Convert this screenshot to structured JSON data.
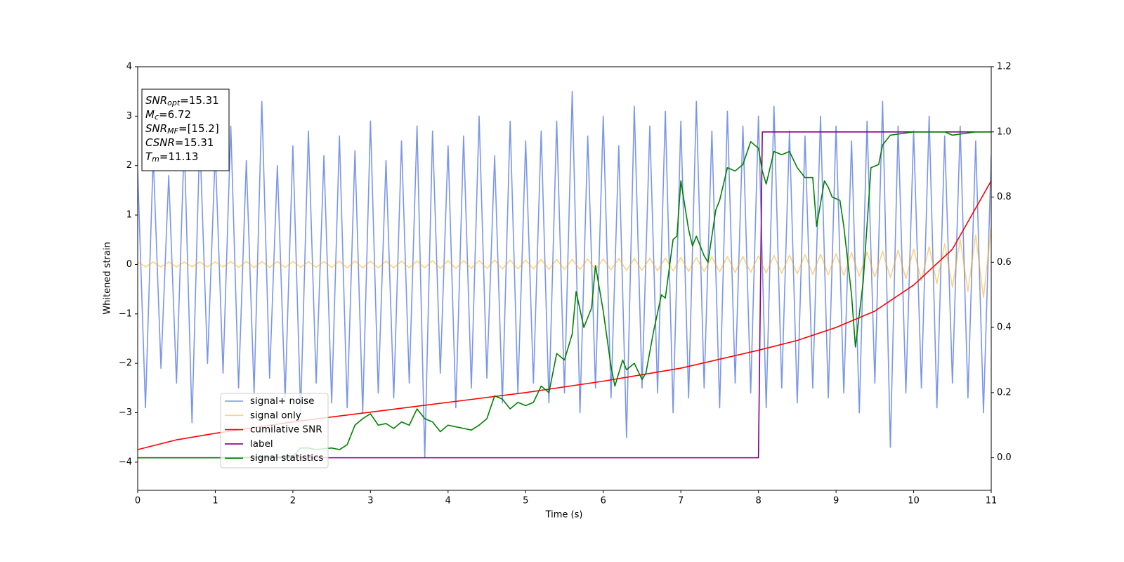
{
  "chart_data": {
    "type": "line",
    "x_label": "Time (s)",
    "y_label": "Whitened strain",
    "xlim": [
      0,
      11
    ],
    "ylim": [
      -4.57,
      4.0
    ],
    "y2lim": [
      -0.1,
      1.2
    ],
    "xticks": [
      0,
      1,
      2,
      3,
      4,
      5,
      6,
      7,
      8,
      9,
      10,
      11
    ],
    "yticks": [
      {
        "value": -4,
        "label": "−4"
      },
      {
        "value": -3,
        "label": "−3"
      },
      {
        "value": -2,
        "label": "−2"
      },
      {
        "value": -1,
        "label": "−1"
      },
      0,
      1,
      2,
      3,
      4
    ],
    "y2ticks": [
      {
        "value": 0,
        "label": "0.0"
      },
      {
        "value": 0.2,
        "label": "0.2"
      },
      {
        "value": 0.4,
        "label": "0.4"
      },
      {
        "value": 0.6,
        "label": "0.6"
      },
      {
        "value": 0.8,
        "label": "0.8"
      },
      {
        "value": 1.0,
        "label": "1.0"
      },
      {
        "value": 1.2,
        "label": "1.2"
      }
    ],
    "legend": "lower left",
    "annotation": [
      [
        "SNR",
        "opt",
        "=15.31"
      ],
      [
        "M",
        "c",
        "=6.72"
      ],
      [
        "SNR",
        "MF",
        "=[15.2]"
      ],
      [
        "CSNR",
        "=15.31"
      ],
      [
        "T",
        "m",
        "=11.13"
      ]
    ],
    "x": [
      0,
      0.1,
      0.2,
      0.3,
      0.4,
      0.5,
      0.6,
      0.7,
      0.8,
      0.9,
      1,
      1.1,
      1.2,
      1.3,
      1.4,
      1.5,
      1.6,
      1.7,
      1.8,
      1.9,
      2,
      2.1,
      2.2,
      2.3,
      2.4,
      2.5,
      2.6,
      2.7,
      2.8,
      2.9,
      3,
      3.1,
      3.2,
      3.3,
      3.4,
      3.5,
      3.6,
      3.7,
      3.8,
      3.9,
      4,
      4.1,
      4.2,
      4.3,
      4.4,
      4.5,
      4.6,
      4.7,
      4.8,
      4.9,
      5,
      5.1,
      5.2,
      5.3,
      5.4,
      5.5,
      5.6,
      5.7,
      5.8,
      5.9,
      6,
      6.1,
      6.2,
      6.3,
      6.4,
      6.5,
      6.6,
      6.7,
      6.8,
      6.9,
      7,
      7.1,
      7.2,
      7.3,
      7.4,
      7.5,
      7.6,
      7.7,
      7.8,
      7.9,
      8,
      8.1,
      8.2,
      8.3,
      8.4,
      8.5,
      8.6,
      8.7,
      8.8,
      8.9,
      9,
      9.1,
      9.2,
      9.3,
      9.4,
      9.5,
      9.6,
      9.7,
      9.8,
      9.9,
      10,
      10.1,
      10.2,
      10.3,
      10.4,
      10.5,
      10.6,
      10.7,
      10.8,
      10.9,
      11
    ],
    "series": [
      {
        "name": "signal+ noise",
        "color": "#4169e1",
        "alpha": 0.7,
        "values": [
          1.9,
          -2.9,
          2.2,
          -2.1,
          1.8,
          -2.4,
          2.5,
          -3.2,
          2.6,
          -2.0,
          2.3,
          -2.2,
          2.8,
          -2.5,
          2.1,
          -2.6,
          3.3,
          -2.3,
          2.0,
          -2.7,
          2.4,
          -3.0,
          2.7,
          -2.4,
          2.2,
          -2.8,
          2.6,
          -2.9,
          2.3,
          -3.0,
          2.9,
          -2.6,
          2.1,
          -2.7,
          2.5,
          -2.4,
          2.8,
          -3.9,
          2.7,
          -2.2,
          2.4,
          -2.9,
          2.6,
          -2.5,
          3.0,
          -2.3,
          2.2,
          -2.8,
          2.9,
          -2.6,
          2.5,
          -2.4,
          2.7,
          -2.8,
          2.9,
          -2.6,
          3.5,
          -3.0,
          2.6,
          -2.5,
          3.0,
          -2.7,
          2.4,
          -3.5,
          3.2,
          -2.5,
          2.8,
          -2.6,
          3.1,
          -3.0,
          2.9,
          -2.7,
          3.3,
          -2.5,
          2.7,
          -2.9,
          3.1,
          -2.4,
          2.8,
          -2.6,
          3.0,
          -2.9,
          3.2,
          -2.5,
          2.7,
          -2.8,
          2.6,
          -2.5,
          3.0,
          -2.7,
          2.8,
          -2.6,
          2.5,
          -3.0,
          2.9,
          -2.4,
          3.3,
          -3.7,
          2.8,
          -2.6,
          2.7,
          -2.5,
          3.0,
          -2.9,
          2.6,
          -2.4,
          2.8,
          -2.7,
          2.5,
          -3.0,
          2.2
        ]
      },
      {
        "name": "signal only",
        "color": "#ffa500",
        "alpha": 0.5,
        "values": [
          0.05,
          -0.05,
          0.05,
          -0.05,
          0.05,
          -0.05,
          0.05,
          -0.05,
          0.05,
          -0.05,
          0.05,
          -0.05,
          0.06,
          -0.06,
          0.06,
          -0.06,
          0.06,
          -0.06,
          0.06,
          -0.06,
          0.06,
          -0.06,
          0.06,
          -0.06,
          0.06,
          -0.06,
          0.07,
          -0.07,
          0.07,
          -0.07,
          0.07,
          -0.07,
          0.07,
          -0.07,
          0.07,
          -0.07,
          0.07,
          -0.07,
          0.08,
          -0.08,
          0.08,
          -0.08,
          0.08,
          -0.08,
          0.08,
          -0.08,
          0.09,
          -0.09,
          0.09,
          -0.09,
          0.09,
          -0.09,
          0.1,
          -0.1,
          0.1,
          -0.1,
          0.1,
          -0.1,
          0.11,
          -0.11,
          0.11,
          -0.11,
          0.12,
          -0.12,
          0.12,
          -0.12,
          0.13,
          -0.13,
          0.13,
          -0.13,
          0.14,
          -0.14,
          0.14,
          -0.14,
          0.15,
          -0.15,
          0.16,
          -0.16,
          0.16,
          -0.16,
          0.17,
          -0.17,
          0.18,
          -0.18,
          0.19,
          -0.19,
          0.2,
          -0.2,
          0.21,
          -0.21,
          0.22,
          -0.22,
          0.24,
          -0.24,
          0.25,
          -0.25,
          0.27,
          -0.27,
          0.29,
          -0.29,
          0.31,
          -0.33,
          0.36,
          -0.39,
          0.42,
          -0.46,
          0.5,
          -0.55,
          0.6,
          -0.67,
          0.75
        ]
      },
      {
        "name": "cumilative SNR",
        "color": "red",
        "alpha": 1,
        "axis": "y2",
        "x": [
          0,
          0.5,
          1,
          2,
          3,
          4,
          5,
          6,
          7,
          8,
          8.5,
          9,
          9.5,
          10,
          10.5,
          11
        ],
        "values": [
          0.025,
          0.055,
          0.075,
          0.11,
          0.14,
          0.17,
          0.2,
          0.235,
          0.275,
          0.33,
          0.36,
          0.4,
          0.45,
          0.53,
          0.64,
          0.85
        ]
      },
      {
        "name": "label",
        "color": "purple",
        "alpha": 1,
        "axis": "y2",
        "x": [
          0,
          8.0,
          8.05,
          11
        ],
        "values": [
          0,
          0,
          1,
          1
        ]
      },
      {
        "name": "signal statistics",
        "color": "green",
        "alpha": 1,
        "axis": "y2",
        "x": [
          0,
          1,
          2,
          2.1,
          2.2,
          2.3,
          2.5,
          2.6,
          2.7,
          2.8,
          2.9,
          3.0,
          3.1,
          3.2,
          3.3,
          3.4,
          3.5,
          3.6,
          3.7,
          3.8,
          3.9,
          4.0,
          4.1,
          4.2,
          4.3,
          4.4,
          4.5,
          4.6,
          4.7,
          4.8,
          4.9,
          5.0,
          5.1,
          5.2,
          5.3,
          5.4,
          5.5,
          5.6,
          5.65,
          5.75,
          5.85,
          5.9,
          6.0,
          6.1,
          6.15,
          6.25,
          6.3,
          6.4,
          6.5,
          6.55,
          6.65,
          6.75,
          6.8,
          6.9,
          6.95,
          7.0,
          7.1,
          7.15,
          7.2,
          7.3,
          7.35,
          7.45,
          7.5,
          7.6,
          7.7,
          7.8,
          7.9,
          8.0,
          8.05,
          8.1,
          8.2,
          8.3,
          8.4,
          8.5,
          8.6,
          8.7,
          8.75,
          8.85,
          8.9,
          8.95,
          9.05,
          9.1,
          9.2,
          9.25,
          9.35,
          9.45,
          9.55,
          9.6,
          9.7,
          10.0,
          10.4,
          10.5,
          10.8,
          11.0
        ],
        "values": [
          0,
          0,
          0.003,
          0.03,
          0.03,
          0.025,
          0.03,
          0.025,
          0.04,
          0.1,
          0.12,
          0.135,
          0.1,
          0.105,
          0.09,
          0.11,
          0.1,
          0.15,
          0.12,
          0.11,
          0.08,
          0.1,
          0.095,
          0.09,
          0.085,
          0.1,
          0.12,
          0.19,
          0.18,
          0.15,
          0.17,
          0.16,
          0.17,
          0.22,
          0.2,
          0.32,
          0.3,
          0.38,
          0.51,
          0.4,
          0.46,
          0.59,
          0.45,
          0.28,
          0.22,
          0.3,
          0.27,
          0.29,
          0.24,
          0.26,
          0.39,
          0.5,
          0.49,
          0.67,
          0.68,
          0.85,
          0.7,
          0.65,
          0.68,
          0.62,
          0.6,
          0.76,
          0.79,
          0.89,
          0.88,
          0.9,
          0.97,
          0.95,
          0.88,
          0.84,
          0.94,
          0.93,
          0.94,
          0.89,
          0.86,
          0.86,
          0.71,
          0.85,
          0.83,
          0.8,
          0.79,
          0.71,
          0.5,
          0.34,
          0.54,
          0.89,
          0.9,
          0.96,
          0.99,
          1.0,
          1.0,
          0.99,
          1.0,
          1.0
        ]
      }
    ]
  }
}
